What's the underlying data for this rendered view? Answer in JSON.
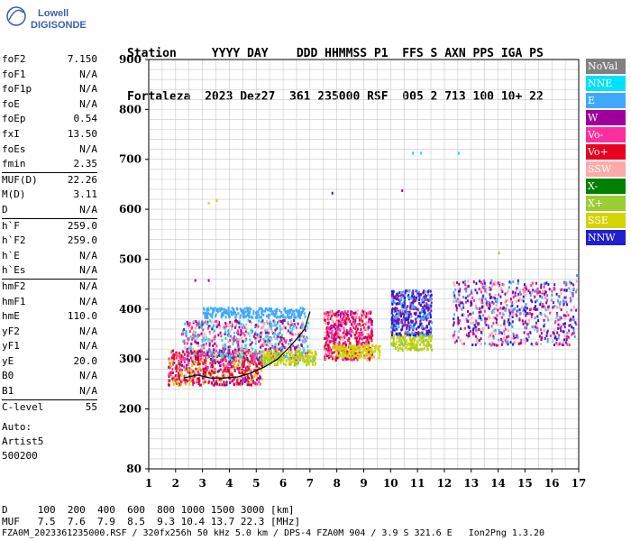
{
  "logo": {
    "line1": "Lowell",
    "line2": "DIGISONDE"
  },
  "header": {
    "line1": "Station     YYYY DAY    DDD HHMMSS P1  FFS S AXN PPS IGA PS",
    "line2": "Fortaleza  2023 Dez27  361 235000 RSF  005 2 713 100 10+ 22"
  },
  "params": [
    {
      "label": "foF2",
      "value": "7.150"
    },
    {
      "label": "foF1",
      "value": "N/A"
    },
    {
      "label": "foF1p",
      "value": "N/A"
    },
    {
      "label": "foE",
      "value": "N/A"
    },
    {
      "label": "foEp",
      "value": "0.54"
    },
    {
      "label": "fxI",
      "value": "13.50"
    },
    {
      "label": "foEs",
      "value": "N/A"
    },
    {
      "label": "fmin",
      "value": "2.35"
    },
    {
      "label": "MUF(D)",
      "value": "22.26"
    },
    {
      "label": "M(D)",
      "value": "3.11"
    },
    {
      "label": "D",
      "value": "N/A"
    },
    {
      "label": "h`F",
      "value": "259.0"
    },
    {
      "label": "h`F2",
      "value": "259.0"
    },
    {
      "label": "h`E",
      "value": "N/A"
    },
    {
      "label": "h`Es",
      "value": "N/A"
    },
    {
      "label": "hmF2",
      "value": "N/A"
    },
    {
      "label": "hmF1",
      "value": "N/A"
    },
    {
      "label": "hmE",
      "value": "110.0"
    },
    {
      "label": "yF2",
      "value": "N/A"
    },
    {
      "label": "yF1",
      "value": "N/A"
    },
    {
      "label": "yE",
      "value": "20.0"
    },
    {
      "label": "B0",
      "value": "N/A"
    },
    {
      "label": "B1",
      "value": "N/A"
    },
    {
      "label": "C-level",
      "value": "55"
    }
  ],
  "auto": {
    "line1": "Auto:",
    "line2": "Artist5",
    "line3": "500200"
  },
  "legend": [
    {
      "label": "NoVal",
      "color": "#808080"
    },
    {
      "label": "NNE",
      "color": "#00e0ff"
    },
    {
      "label": "E",
      "color": "#3fa9ff"
    },
    {
      "label": "W",
      "color": "#a0009a"
    },
    {
      "label": "Vo-",
      "color": "#ff2ea0"
    },
    {
      "label": "Vo+",
      "color": "#e80020"
    },
    {
      "label": "SSW",
      "color": "#ffaaa8"
    },
    {
      "label": "X-",
      "color": "#008000"
    },
    {
      "label": "X+",
      "color": "#9acd32"
    },
    {
      "label": "SSE",
      "color": "#d4d400"
    },
    {
      "label": "NNW",
      "color": "#2020d0"
    }
  ],
  "footer": {
    "line1": "D     100  200  400  600  800 1000 1500 3000 [km]",
    "line2": "MUF   7.5  7.6  7.9  8.5  9.3 10.4 13.7 22.3 [MHz]",
    "line3": "FZA0M_2023361235000.RSF / 320fx256h 50 kHz 5.0 km / DPS-4 FZA0M 904 / 3.9 S 321.6 E   Ion2Png 1.3.20"
  },
  "chart_data": {
    "type": "scatter",
    "xlim": [
      1,
      17
    ],
    "ylim": [
      80,
      900
    ],
    "x_ticks": [
      1,
      2,
      3,
      4,
      5,
      6,
      7,
      8,
      9,
      10,
      11,
      12,
      13,
      14,
      15,
      16,
      17
    ],
    "y_ticks": [
      80,
      200,
      300,
      400,
      500,
      600,
      700,
      800,
      900
    ],
    "grid": true,
    "legend_position": "right",
    "trace": {
      "x": [
        2.3,
        2.8,
        3.3,
        3.8,
        4.3,
        4.8,
        5.3,
        5.8,
        6.2,
        6.5,
        6.8,
        7.0
      ],
      "y": [
        262,
        268,
        262,
        262,
        264,
        272,
        284,
        300,
        322,
        340,
        360,
        395
      ]
    },
    "clusters": [
      {
        "x": [
          1.7,
          5.2
        ],
        "y": [
          250,
          320
        ],
        "colors": [
          "Vo+",
          "Vo-",
          "W",
          "SSE"
        ]
      },
      {
        "x": [
          2.2,
          6.9
        ],
        "y": [
          300,
          380
        ],
        "colors": [
          "W",
          "Vo-",
          "SSW",
          "NNE"
        ]
      },
      {
        "x": [
          3.0,
          6.8
        ],
        "y": [
          385,
          405
        ],
        "colors": [
          "E"
        ]
      },
      {
        "x": [
          5.2,
          7.2
        ],
        "y": [
          290,
          320
        ],
        "colors": [
          "SSE",
          "X+"
        ]
      },
      {
        "x": [
          7.5,
          9.3
        ],
        "y": [
          300,
          400
        ],
        "colors": [
          "Vo-",
          "Vo+",
          "SSW",
          "W"
        ]
      },
      {
        "x": [
          7.8,
          9.6
        ],
        "y": [
          305,
          330
        ],
        "colors": [
          "SSE"
        ]
      },
      {
        "x": [
          10.0,
          11.5
        ],
        "y": [
          320,
          355
        ],
        "colors": [
          "SSE",
          "X+"
        ]
      },
      {
        "x": [
          10.0,
          11.5
        ],
        "y": [
          350,
          440
        ],
        "colors": [
          "NNW",
          "W",
          "E"
        ]
      },
      {
        "x": [
          12.3,
          16.9
        ],
        "y": [
          330,
          460
        ],
        "colors": [
          "E",
          "W",
          "NNW",
          "Vo-",
          "SSW"
        ]
      }
    ],
    "outliers": [
      {
        "x": 10.8,
        "y": 715,
        "c": "NNE"
      },
      {
        "x": 11.1,
        "y": 715,
        "c": "NNE"
      },
      {
        "x": 12.5,
        "y": 715,
        "c": "NNE"
      },
      {
        "x": 10.4,
        "y": 640,
        "c": "W"
      },
      {
        "x": 7.8,
        "y": 635,
        "c": "NNW"
      },
      {
        "x": 3.2,
        "y": 615,
        "c": "SSE"
      },
      {
        "x": 3.5,
        "y": 620,
        "c": "SSE"
      },
      {
        "x": 2.7,
        "y": 460,
        "c": "W"
      },
      {
        "x": 3.2,
        "y": 460,
        "c": "W"
      },
      {
        "x": 14.0,
        "y": 515,
        "c": "X+"
      },
      {
        "x": 16.9,
        "y": 470,
        "c": "E"
      }
    ]
  }
}
